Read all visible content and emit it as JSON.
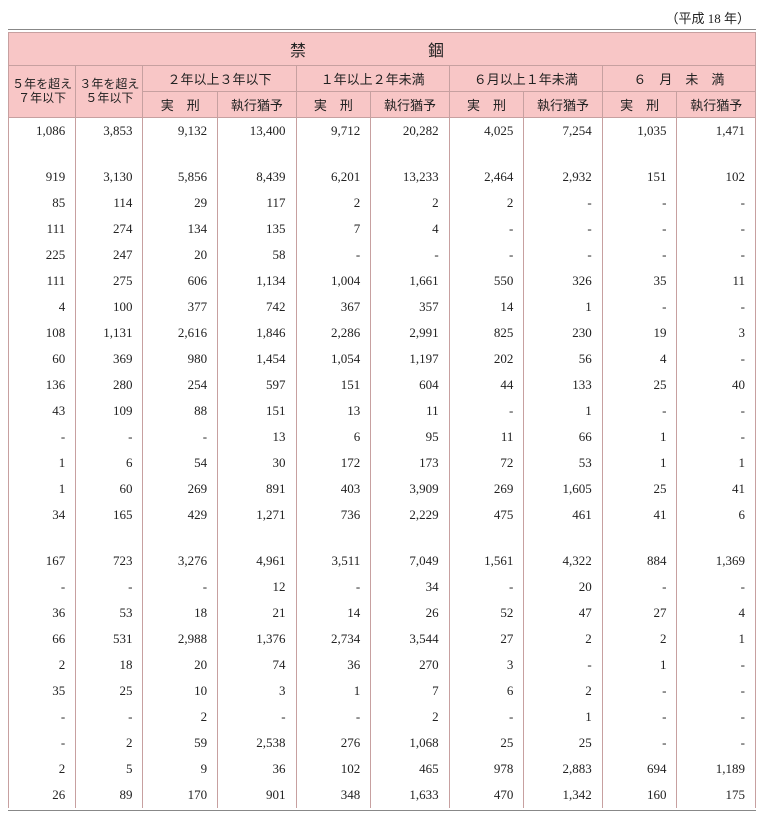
{
  "caption": "（平成 18 年）",
  "header": {
    "title": "禁　　錮",
    "col1_l1": "５年を超え",
    "col1_l2": "７年以下",
    "col2_l1": "３年を超え",
    "col2_l2": "５年以下",
    "g1": "２年以上３年以下",
    "g2": "１年以上２年未満",
    "g3": "６月以上１年未満",
    "g4": "６　月　未　満",
    "sub_a": "実　刑",
    "sub_b": "執行猶予"
  },
  "rows": [
    [
      "1,086",
      "3,853",
      "9,132",
      "13,400",
      "9,712",
      "20,282",
      "4,025",
      "7,254",
      "1,035",
      "1,471"
    ],
    null,
    [
      "919",
      "3,130",
      "5,856",
      "8,439",
      "6,201",
      "13,233",
      "2,464",
      "2,932",
      "151",
      "102"
    ],
    [
      "85",
      "114",
      "29",
      "117",
      "2",
      "2",
      "2",
      "-",
      "-",
      "-"
    ],
    [
      "111",
      "274",
      "134",
      "135",
      "7",
      "4",
      "-",
      "-",
      "-",
      "-"
    ],
    [
      "225",
      "247",
      "20",
      "58",
      "-",
      "-",
      "-",
      "-",
      "-",
      "-"
    ],
    [
      "111",
      "275",
      "606",
      "1,134",
      "1,004",
      "1,661",
      "550",
      "326",
      "35",
      "11"
    ],
    [
      "4",
      "100",
      "377",
      "742",
      "367",
      "357",
      "14",
      "1",
      "-",
      "-"
    ],
    [
      "108",
      "1,131",
      "2,616",
      "1,846",
      "2,286",
      "2,991",
      "825",
      "230",
      "19",
      "3"
    ],
    [
      "60",
      "369",
      "980",
      "1,454",
      "1,054",
      "1,197",
      "202",
      "56",
      "4",
      "-"
    ],
    [
      "136",
      "280",
      "254",
      "597",
      "151",
      "604",
      "44",
      "133",
      "25",
      "40"
    ],
    [
      "43",
      "109",
      "88",
      "151",
      "13",
      "11",
      "-",
      "1",
      "-",
      "-"
    ],
    [
      "-",
      "-",
      "-",
      "13",
      "6",
      "95",
      "11",
      "66",
      "1",
      "-"
    ],
    [
      "1",
      "6",
      "54",
      "30",
      "172",
      "173",
      "72",
      "53",
      "1",
      "1"
    ],
    [
      "1",
      "60",
      "269",
      "891",
      "403",
      "3,909",
      "269",
      "1,605",
      "25",
      "41"
    ],
    [
      "34",
      "165",
      "429",
      "1,271",
      "736",
      "2,229",
      "475",
      "461",
      "41",
      "6"
    ],
    null,
    [
      "167",
      "723",
      "3,276",
      "4,961",
      "3,511",
      "7,049",
      "1,561",
      "4,322",
      "884",
      "1,369"
    ],
    [
      "-",
      "-",
      "-",
      "12",
      "-",
      "34",
      "-",
      "20",
      "-",
      "-"
    ],
    [
      "36",
      "53",
      "18",
      "21",
      "14",
      "26",
      "52",
      "47",
      "27",
      "4"
    ],
    [
      "66",
      "531",
      "2,988",
      "1,376",
      "2,734",
      "3,544",
      "27",
      "2",
      "2",
      "1"
    ],
    [
      "2",
      "18",
      "20",
      "74",
      "36",
      "270",
      "3",
      "-",
      "1",
      "-"
    ],
    [
      "35",
      "25",
      "10",
      "3",
      "1",
      "7",
      "6",
      "2",
      "-",
      "-"
    ],
    [
      "-",
      "-",
      "2",
      "-",
      "-",
      "2",
      "-",
      "1",
      "-",
      "-"
    ],
    [
      "-",
      "2",
      "59",
      "2,538",
      "276",
      "1,068",
      "25",
      "25",
      "-",
      "-"
    ],
    [
      "2",
      "5",
      "9",
      "36",
      "102",
      "465",
      "978",
      "2,883",
      "694",
      "1,189"
    ],
    [
      "26",
      "89",
      "170",
      "901",
      "348",
      "1,633",
      "470",
      "1,342",
      "160",
      "175"
    ]
  ]
}
